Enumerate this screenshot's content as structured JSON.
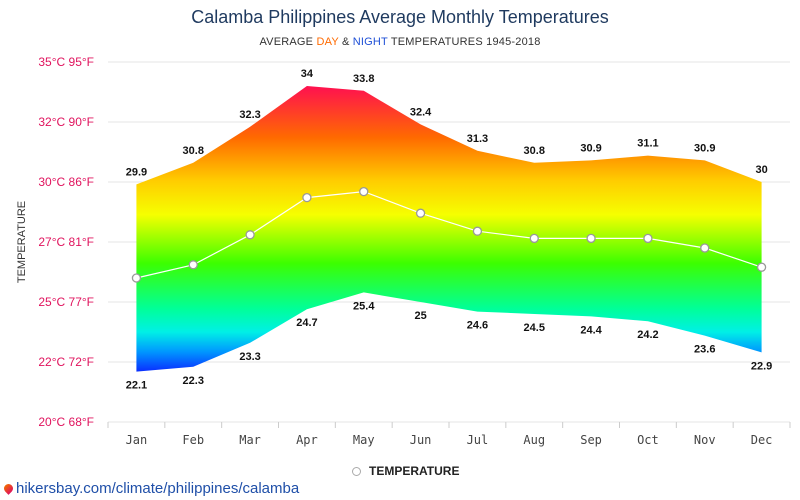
{
  "header": {
    "title": "Calamba Philippines Average Monthly Temperatures",
    "subtitle_prefix": "AVERAGE ",
    "subtitle_day": "DAY",
    "subtitle_amp": " & ",
    "subtitle_night": "NIGHT",
    "subtitle_suffix": " TEMPERATURES 1945-2018"
  },
  "footer": {
    "source": "hikersbay.com/climate/philippines/calamba"
  },
  "chart_data": {
    "type": "area",
    "title": "Calamba Philippines Average Monthly Temperatures",
    "subtitle": "AVERAGE DAY & NIGHT TEMPERATURES 1945-2018",
    "ylabel": "TEMPERATURE",
    "xlabel": "",
    "categories": [
      "Jan",
      "Feb",
      "Mar",
      "Apr",
      "May",
      "Jun",
      "Jul",
      "Aug",
      "Sep",
      "Oct",
      "Nov",
      "Dec"
    ],
    "ylim": [
      20,
      35
    ],
    "yticks": [
      {
        "value": 35,
        "label": "35°C 95°F"
      },
      {
        "value": 32.5,
        "label": "32°C 90°F"
      },
      {
        "value": 30,
        "label": "30°C 86°F"
      },
      {
        "value": 27.5,
        "label": "27°C 81°F"
      },
      {
        "value": 25,
        "label": "25°C 77°F"
      },
      {
        "value": 22.5,
        "label": "22°C 72°F"
      },
      {
        "value": 20,
        "label": "20°C 68°F"
      }
    ],
    "grid": true,
    "legend_position": "bottom",
    "legend": [
      "TEMPERATURE"
    ],
    "series": [
      {
        "role": "day",
        "values": [
          29.9,
          30.8,
          32.3,
          34,
          33.8,
          32.4,
          31.3,
          30.8,
          30.9,
          31.1,
          30.9,
          30
        ]
      },
      {
        "role": "night",
        "values": [
          22.1,
          22.3,
          23.3,
          24.7,
          25.4,
          25,
          24.6,
          24.5,
          24.4,
          24.2,
          23.6,
          22.9
        ]
      },
      {
        "name": "TEMPERATURE",
        "role": "average",
        "values": [
          26.0,
          26.55,
          27.8,
          29.35,
          29.6,
          28.7,
          27.95,
          27.65,
          27.65,
          27.65,
          27.25,
          26.45
        ]
      }
    ],
    "colors": {
      "axis_labels": "#e0135d",
      "grid": "#e6e6e6",
      "average_line": "#ffffff",
      "gradient_hot": "#ff1050",
      "gradient_mid": "#7cff00",
      "gradient_cold": "#0a2cff"
    }
  }
}
